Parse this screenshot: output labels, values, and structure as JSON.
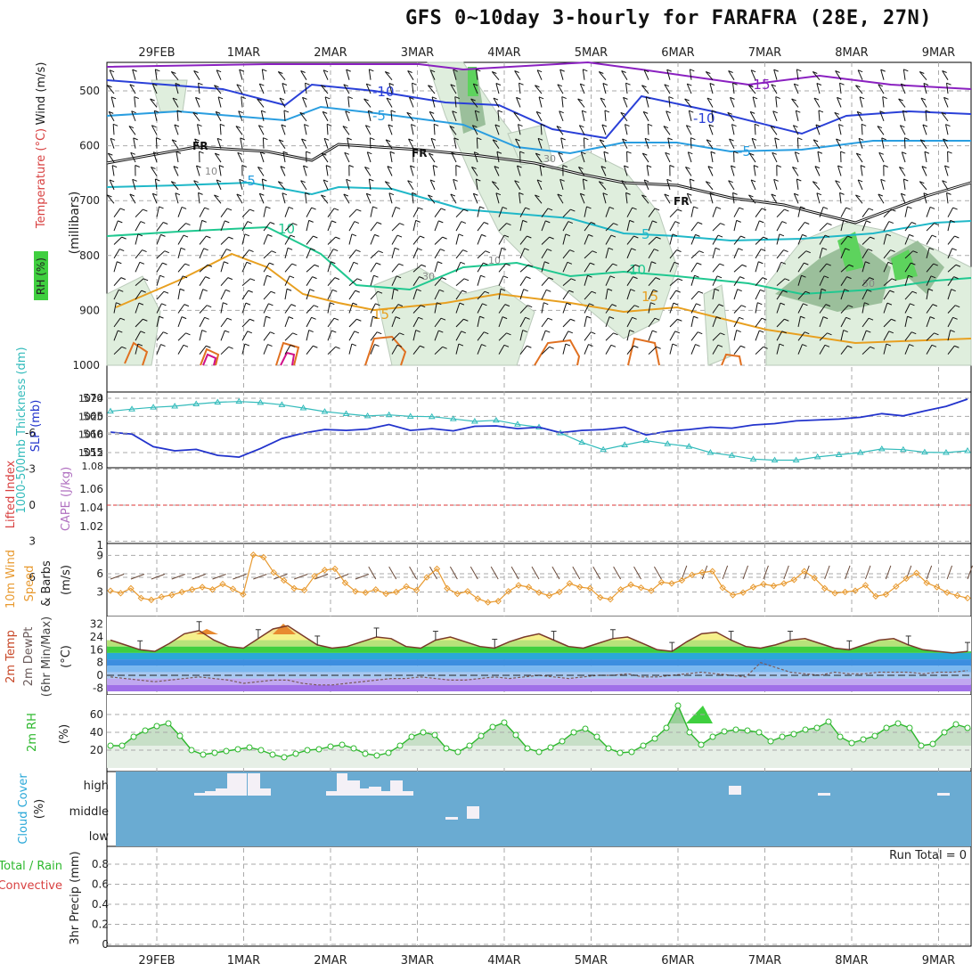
{
  "title": "GFS 0~10day 3-hourly for FARAFRA (28E, 27N)",
  "date_labels": [
    "29FEB",
    "1MAR",
    "2MAR",
    "3MAR",
    "4MAR",
    "5MAR",
    "6MAR",
    "7MAR",
    "8MAR",
    "9MAR"
  ],
  "panels": {
    "upper": {
      "ylabel_parts": [
        "RH (%)",
        "Temperature (°C)",
        "Wind (m/s)"
      ],
      "axis_label": "(millibars)",
      "pressure_ticks": [
        "500",
        "600",
        "700",
        "800",
        "900",
        "1000"
      ],
      "contour_labels": {
        "t_minus15": "-15",
        "t_minus10a": "-10",
        "t_minus10b": "-10",
        "t_minus5a": "-5",
        "t_minus5b": "-5",
        "t_minus5c": "-5",
        "freezing_a": "FR",
        "freezing_b": "FR",
        "freezing_c": "FR",
        "t_5a": "5",
        "t_5b": "5",
        "t_10a": "10",
        "t_10b": "10",
        "t_15a": "15",
        "t_15b": "15",
        "rh_10a": "10",
        "rh_10b": "10",
        "rh_30a": "30",
        "rh_30b": "30",
        "rh_50": "50"
      }
    },
    "thickness": {
      "left_label": "1000-500mb Thickness (dm)",
      "right_label": "SLP (mb)",
      "left_ticks": [
        "570",
        "565",
        "560",
        "555"
      ],
      "right_ticks": [
        "1024",
        "1020",
        "1016",
        "1012",
        "1.08"
      ]
    },
    "cape": {
      "left_label": "Lifted Index",
      "right_label": "CAPE (J/kg)",
      "left_ticks": [
        "-6",
        "-3",
        "0",
        "3",
        "6"
      ],
      "right_ticks": [
        "1.06",
        "1.04",
        "1.02",
        "1"
      ]
    },
    "wind10": {
      "label_parts": [
        "10m Wind",
        "Speed",
        "& Barbs"
      ],
      "unit": "(m/s)",
      "ticks": [
        "9",
        "6",
        "3"
      ]
    },
    "temp2m": {
      "label_parts": [
        "2m Temp",
        "2m DewPt",
        "(6hr Min/Max)"
      ],
      "unit": "(°C)",
      "ticks": [
        "32",
        "24",
        "16",
        "8",
        "0",
        "-8"
      ]
    },
    "rh2m": {
      "label": "2m RH",
      "unit": "(%)",
      "ticks": [
        "60",
        "40",
        "20"
      ]
    },
    "cloud": {
      "label": "Cloud Cover",
      "unit": "(%)",
      "levels": [
        "high",
        "middle",
        "low"
      ]
    },
    "precip": {
      "label_parts": [
        "Total / Rain",
        "Convective"
      ],
      "ylabel": "3hr Precip (mm)",
      "ticks": [
        "0.8",
        "0.6",
        "0.4",
        "0.2",
        "0"
      ],
      "run_total": "Run Total = 0"
    }
  },
  "colors": {
    "grid": "#aaaaaa",
    "thickness": "#33bbbb",
    "slp": "#2233cc",
    "wind_speed": "#e89a30",
    "rh_green": "#2db82d",
    "cloud_bg": "#6aabd2",
    "cloud_fill": "#f4f0f6",
    "lifted_zero": "#dd3333",
    "temp_line": "#7a3a2a"
  },
  "chart_data": [
    {
      "type": "line",
      "title": "1000-500mb Thickness (dm) and SLP (mb)",
      "x_label_dates": [
        "29FEB",
        "1MAR",
        "2MAR",
        "3MAR",
        "4MAR",
        "5MAR",
        "6MAR",
        "7MAR",
        "8MAR",
        "9MAR"
      ],
      "series": [
        {
          "name": "1000-500mb Thickness (dm)",
          "values": [
            566.4,
            567.0,
            567.5,
            567.8,
            568.4,
            568.9,
            569.1,
            568.8,
            568.2,
            567.3,
            566.3,
            565.7,
            565.1,
            565.4,
            565.0,
            564.9,
            564.3,
            563.6,
            563.9,
            562.8,
            562.0,
            560.4,
            557.8,
            555.8,
            557.1,
            558.3,
            557.4,
            556.7,
            555.0,
            554.2,
            553.2,
            552.9,
            552.9,
            553.8,
            554.4,
            555.0,
            556.0,
            555.8,
            555.1,
            555.0,
            555.5
          ]
        },
        {
          "name": "SLP (mb)",
          "values": [
            1016.5,
            1016.1,
            1013.3,
            1012.4,
            1012.7,
            1011.4,
            1011.0,
            1012.9,
            1015.1,
            1016.3,
            1017.1,
            1016.9,
            1017.2,
            1018.2,
            1016.9,
            1017.3,
            1016.8,
            1017.8,
            1017.9,
            1017.3,
            1017.6,
            1016.4,
            1016.9,
            1017.1,
            1017.6,
            1015.9,
            1016.7,
            1017.1,
            1017.6,
            1017.4,
            1018.1,
            1018.4,
            1019.0,
            1019.2,
            1019.4,
            1019.8,
            1020.6,
            1020.1,
            1021.2,
            1022.2,
            1023.8
          ]
        }
      ],
      "ylim_left": [
        550,
        572
      ],
      "ylim_right": [
        1008,
        1024
      ]
    },
    {
      "type": "line",
      "title": "10m Wind Speed (m/s)",
      "x_label_dates": [
        "29FEB",
        "1MAR",
        "2MAR",
        "3MAR",
        "4MAR",
        "5MAR",
        "6MAR",
        "7MAR",
        "8MAR",
        "9MAR"
      ],
      "series": [
        {
          "name": "10m Wind Speed",
          "values": [
            3.2,
            2.8,
            3.6,
            2.0,
            1.7,
            2.2,
            2.5,
            3.0,
            3.4,
            3.8,
            3.4,
            4.3,
            3.5,
            2.6,
            9.1,
            8.7,
            6.2,
            4.9,
            3.6,
            3.3,
            5.6,
            6.6,
            6.8,
            4.5,
            3.1,
            2.9,
            3.4,
            2.7,
            3.0,
            3.9,
            3.3,
            5.4,
            6.8,
            3.6,
            2.7,
            3.1,
            1.9,
            1.3,
            1.5,
            3.1,
            4.1,
            3.8,
            2.9,
            2.4,
            3.0,
            4.4,
            3.8,
            3.6,
            2.1,
            1.8,
            3.4,
            4.2,
            3.7,
            3.2,
            4.6,
            4.4,
            4.9,
            5.8,
            6.2,
            6.4,
            3.7,
            2.5,
            2.9,
            3.8,
            4.3,
            4.0,
            4.4,
            5.0,
            6.4,
            5.3,
            3.6,
            2.8,
            3.0,
            3.2,
            4.1,
            2.3,
            2.6,
            3.9,
            5.2,
            6.1,
            4.5,
            3.8,
            2.9,
            2.4,
            2.0
          ]
        }
      ],
      "ylim": [
        0,
        10
      ]
    },
    {
      "type": "area",
      "title": "2m Temp and 2m DewPt (°C)",
      "x_label_dates": [
        "29FEB",
        "1MAR",
        "2MAR",
        "3MAR",
        "4MAR",
        "5MAR",
        "6MAR",
        "7MAR",
        "8MAR",
        "9MAR"
      ],
      "series": [
        {
          "name": "2m Temp",
          "values": [
            22,
            19,
            16,
            15,
            20,
            26,
            28,
            22,
            18,
            17,
            23,
            29,
            31,
            25,
            19,
            17,
            18,
            21,
            24,
            23,
            18,
            17,
            22,
            24,
            21,
            18,
            17,
            21,
            24,
            26,
            22,
            18,
            17,
            20,
            23,
            24,
            20,
            16,
            15,
            21,
            26,
            27,
            22,
            18,
            17,
            19,
            22,
            23,
            20,
            17,
            16,
            19,
            22,
            23,
            19,
            16,
            15,
            14,
            15
          ]
        },
        {
          "name": "2m DewPt",
          "values": [
            -1,
            -2,
            -3,
            -4,
            -3,
            -2,
            -1,
            -2,
            -3,
            -5,
            -4,
            -3,
            -3,
            -5,
            -6,
            -6,
            -5,
            -4,
            -3,
            -2,
            -2,
            -1,
            -2,
            -3,
            -3,
            -2,
            -1,
            -2,
            -1,
            0,
            -1,
            -2,
            -1,
            0,
            0,
            1,
            -1,
            -1,
            0,
            1,
            2,
            1,
            0,
            -1,
            8,
            5,
            2,
            1,
            0,
            2,
            1,
            1,
            2,
            2,
            2,
            1,
            2,
            2,
            3
          ]
        }
      ],
      "ylim": [
        -10,
        34
      ]
    },
    {
      "type": "area",
      "title": "2m RH (%)",
      "x_label_dates": [
        "29FEB",
        "1MAR",
        "2MAR",
        "3MAR",
        "4MAR",
        "5MAR",
        "6MAR",
        "7MAR",
        "8MAR",
        "9MAR"
      ],
      "series": [
        {
          "name": "2m RH",
          "values": [
            25,
            25,
            35,
            42,
            47,
            50,
            36,
            20,
            15,
            17,
            19,
            21,
            23,
            20,
            15,
            12,
            16,
            20,
            21,
            24,
            26,
            22,
            16,
            14,
            17,
            25,
            35,
            40,
            37,
            22,
            18,
            25,
            36,
            46,
            51,
            37,
            22,
            18,
            23,
            30,
            40,
            44,
            35,
            22,
            17,
            18,
            25,
            33,
            45,
            70,
            40,
            26,
            35,
            41,
            43,
            42,
            40,
            30,
            35,
            38,
            43,
            45,
            52,
            35,
            28,
            32,
            36,
            45,
            50,
            45,
            25,
            27,
            40,
            49,
            45
          ]
        }
      ],
      "ylim": [
        0,
        75
      ]
    },
    {
      "type": "bar",
      "title": "3hr Precip (mm)",
      "x_label_dates": [
        "29FEB",
        "1MAR",
        "2MAR",
        "3MAR",
        "4MAR",
        "5MAR",
        "6MAR",
        "7MAR",
        "8MAR",
        "9MAR"
      ],
      "series": [
        {
          "name": "Total / Rain",
          "values": [
            0,
            0,
            0,
            0,
            0,
            0,
            0,
            0,
            0,
            0
          ]
        },
        {
          "name": "Convective",
          "values": [
            0,
            0,
            0,
            0,
            0,
            0,
            0,
            0,
            0,
            0
          ]
        }
      ],
      "ylim": [
        0,
        0.9
      ]
    }
  ]
}
